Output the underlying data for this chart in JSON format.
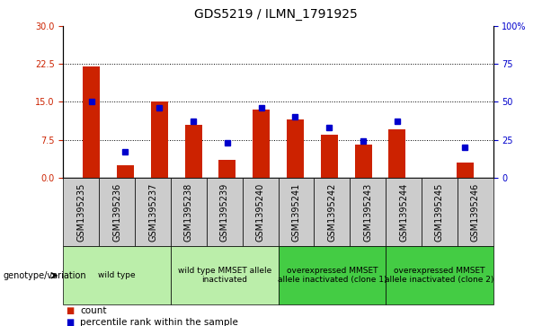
{
  "title": "GDS5219 / ILMN_1791925",
  "samples": [
    "GSM1395235",
    "GSM1395236",
    "GSM1395237",
    "GSM1395238",
    "GSM1395239",
    "GSM1395240",
    "GSM1395241",
    "GSM1395242",
    "GSM1395243",
    "GSM1395244",
    "GSM1395245",
    "GSM1395246"
  ],
  "counts": [
    22.0,
    2.5,
    15.0,
    10.5,
    3.5,
    13.5,
    11.5,
    8.5,
    6.5,
    9.5,
    0.0,
    3.0
  ],
  "percentiles": [
    50,
    17,
    46,
    37,
    23,
    46,
    40,
    33,
    24,
    37,
    0,
    20
  ],
  "left_ylim": [
    0,
    30
  ],
  "right_ylim": [
    0,
    100
  ],
  "left_yticks": [
    0,
    7.5,
    15,
    22.5,
    30
  ],
  "right_yticks": [
    0,
    25,
    50,
    75,
    100
  ],
  "bar_color": "#cc2200",
  "dot_color": "#0000cc",
  "group_configs": [
    {
      "start": 0,
      "end": 2,
      "label": "wild type",
      "color": "#bbeeaa"
    },
    {
      "start": 3,
      "end": 5,
      "label": "wild type MMSET allele\ninactivated",
      "color": "#bbeeaa"
    },
    {
      "start": 6,
      "end": 8,
      "label": "overexpressed MMSET\nallele inactivated (clone 1)",
      "color": "#44cc44"
    },
    {
      "start": 9,
      "end": 11,
      "label": "overexpressed MMSET\nallele inactivated (clone 2)",
      "color": "#44cc44"
    }
  ],
  "group_label_prefix": "genotype/variation",
  "legend_count_label": "count",
  "legend_percentile_label": "percentile rank within the sample",
  "grid_yticks": [
    7.5,
    15,
    22.5
  ],
  "bar_width": 0.5,
  "cell_bg": "#cccccc",
  "title_fontsize": 10,
  "tick_fontsize": 7,
  "group_fontsize": 6.5,
  "legend_fontsize": 7.5
}
